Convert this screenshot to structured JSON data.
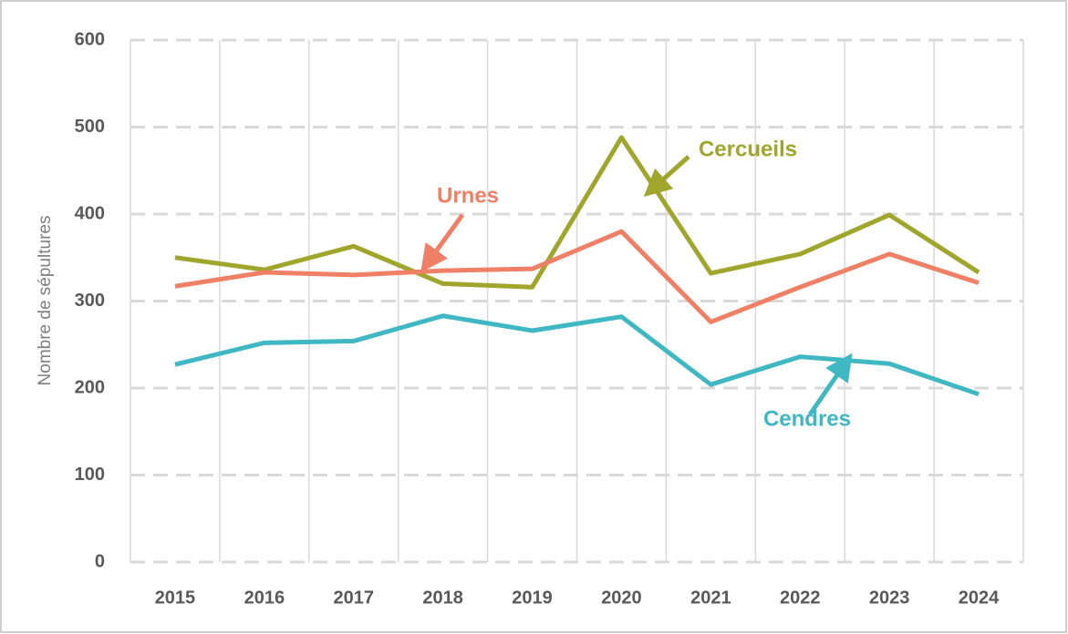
{
  "chart_data": {
    "type": "line",
    "y_label": "Nombre de sépultures",
    "categories": [
      "2015",
      "2016",
      "2017",
      "2018",
      "2019",
      "2020",
      "2021",
      "2022",
      "2023",
      "2024"
    ],
    "series": [
      {
        "name": "Cercueils",
        "color": "#a0a62b",
        "values": [
          350,
          336,
          363,
          320,
          316,
          488,
          332,
          354,
          399,
          333
        ]
      },
      {
        "name": "Urnes",
        "color": "#f08065",
        "values": [
          317,
          333,
          330,
          335,
          337,
          380,
          276,
          316,
          354,
          321
        ]
      },
      {
        "name": "Cendres",
        "color": "#3fb8c4",
        "values": [
          227,
          252,
          254,
          283,
          266,
          282,
          204,
          236,
          228,
          193
        ]
      }
    ],
    "ylim": [
      0,
      600
    ],
    "yticks": [
      0,
      100,
      200,
      300,
      400,
      500,
      600
    ],
    "grid": true
  }
}
